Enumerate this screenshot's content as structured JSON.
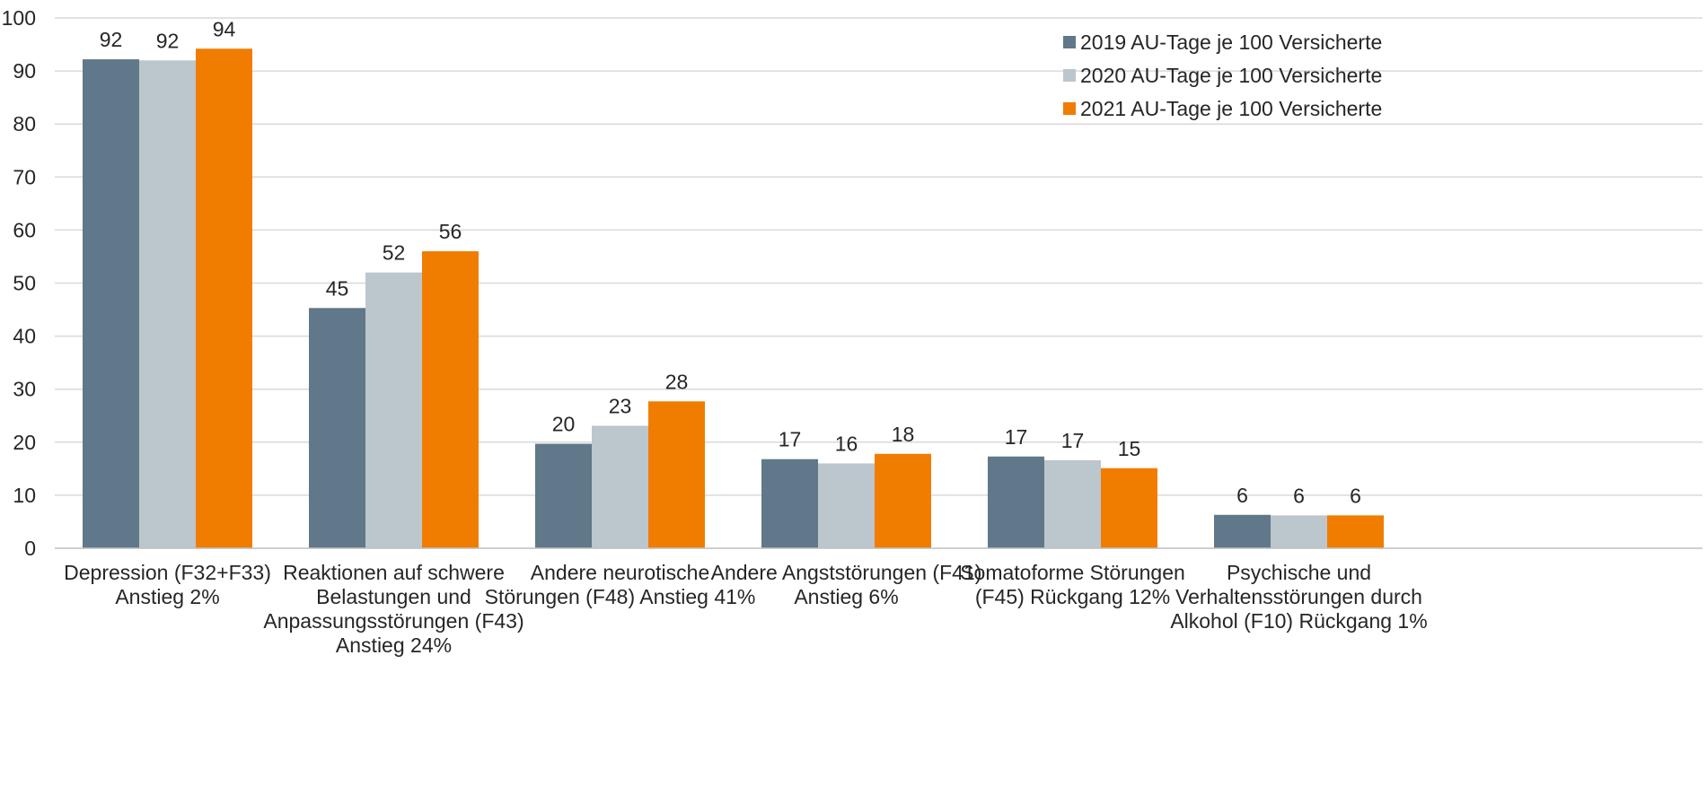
{
  "chart_data": {
    "type": "bar",
    "categories": [
      [
        "Depression (F32+F33)",
        "Anstieg 2%"
      ],
      [
        "Reaktionen auf schwere",
        "Belastungen und",
        "Anpassungsstörungen (F43)",
        "Anstieg 24%"
      ],
      [
        "Andere neurotische",
        "Störungen (F48) Anstieg 41%"
      ],
      [
        "Andere Angststörungen (F41)",
        "Anstieg 6%"
      ],
      [
        "Somatoforme Störungen",
        "(F45) Rückgang 12%"
      ],
      [
        "Psychische und",
        "Verhaltensstörungen durch",
        "Alkohol (F10) Rückgang 1%"
      ]
    ],
    "series": [
      {
        "name": "2019 AU-Tage je 100 Versicherte",
        "color": "#607889",
        "values": [
          92.2,
          45.3,
          19.7,
          16.8,
          17.3,
          6.3
        ],
        "labels": [
          "92",
          "45",
          "20",
          "17",
          "17",
          "6"
        ]
      },
      {
        "name": "2020 AU-Tage je 100 Versicherte",
        "color": "#bcc6cd",
        "values": [
          92.0,
          52.0,
          23.1,
          16.0,
          16.6,
          6.2
        ],
        "labels": [
          "92",
          "52",
          "23",
          "16",
          "17",
          "6"
        ]
      },
      {
        "name": "2021 AU-Tage je 100 Versicherte",
        "color": "#f07d00",
        "values": [
          94.2,
          56.0,
          27.7,
          17.8,
          15.1,
          6.2
        ],
        "labels": [
          "94",
          "56",
          "28",
          "18",
          "15",
          "6"
        ]
      }
    ],
    "yticks": [
      "0",
      "10",
      "20",
      "30",
      "40",
      "50",
      "60",
      "70",
      "80",
      "90",
      "100"
    ],
    "ylim": [
      0,
      100
    ],
    "grid": true,
    "legend_position": "top-right",
    "title": "",
    "xlabel": "",
    "ylabel": ""
  }
}
